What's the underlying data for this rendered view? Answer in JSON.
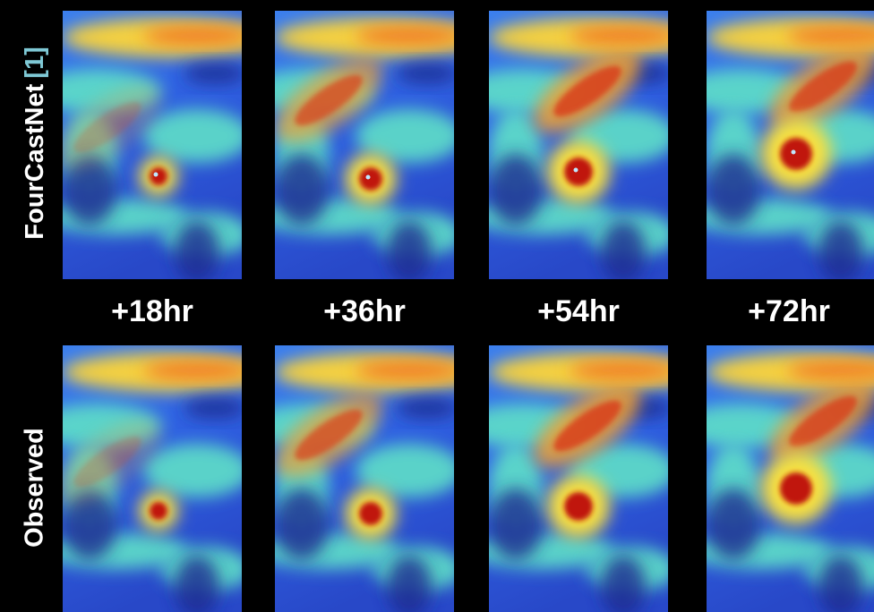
{
  "row_labels": [
    {
      "text": "FourCastNet",
      "ref": "[1]"
    },
    {
      "text": "Observed"
    }
  ],
  "time_labels": [
    "+18hr",
    "+36hr",
    "+54hr",
    "+72hr"
  ]
}
